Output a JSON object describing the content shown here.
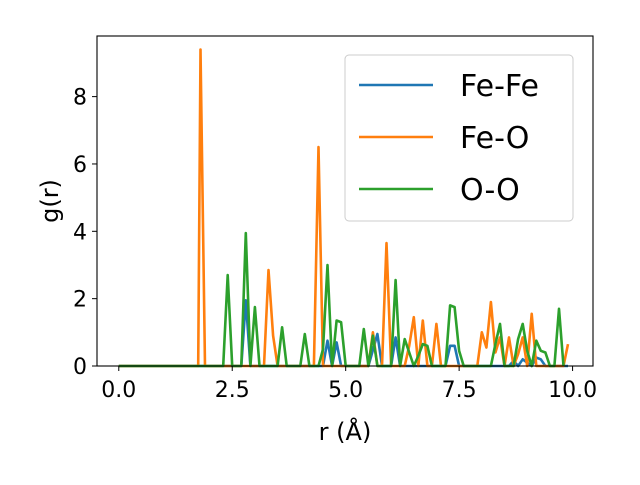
{
  "chart_data": {
    "type": "line",
    "title": "",
    "xlabel": "r (Å)",
    "ylabel": "g(r)",
    "xlim": [
      -0.48,
      10.45
    ],
    "ylim": [
      0,
      9.8
    ],
    "xticks": [
      0.0,
      2.5,
      5.0,
      7.5,
      10.0
    ],
    "xtick_labels": [
      "0.0",
      "2.5",
      "5.0",
      "7.5",
      "10.0"
    ],
    "yticks": [
      0,
      2,
      4,
      6,
      8
    ],
    "ytick_labels": [
      "0",
      "2",
      "4",
      "6",
      "8"
    ],
    "grid": false,
    "legend_position": "top-right",
    "series": [
      {
        "name": "Fe-Fe",
        "color": "#1f77b4",
        "x": [
          0.0,
          2.7,
          2.8,
          2.9,
          4.5,
          4.6,
          4.7,
          4.8,
          4.9,
          5.0,
          5.5,
          5.7,
          5.8,
          6.0,
          6.1,
          6.2,
          6.4,
          7.2,
          7.3,
          7.4,
          7.5,
          8.6,
          8.7,
          8.8,
          8.9,
          9.1,
          9.2,
          9.3,
          9.4,
          9.9
        ],
        "y": [
          0.0,
          0.0,
          1.95,
          0.0,
          0.0,
          0.75,
          0.0,
          0.7,
          0.0,
          0.0,
          0.0,
          0.95,
          0.0,
          0.0,
          0.85,
          0.0,
          0.0,
          0.0,
          0.6,
          0.6,
          0.0,
          0.0,
          0.15,
          0.0,
          0.2,
          0.0,
          0.25,
          0.2,
          0.0,
          0.0
        ]
      },
      {
        "name": "Fe-O",
        "color": "#ff7f0e",
        "x": [
          0.0,
          1.75,
          1.8,
          1.9,
          3.2,
          3.3,
          3.4,
          3.5,
          4.3,
          4.4,
          4.5,
          5.5,
          5.6,
          5.7,
          5.8,
          5.9,
          6.0,
          6.3,
          6.4,
          6.5,
          6.6,
          6.7,
          6.8,
          6.9,
          7.0,
          7.1,
          7.2,
          7.9,
          8.0,
          8.1,
          8.2,
          8.3,
          8.4,
          8.5,
          8.6,
          8.7,
          8.8,
          8.9,
          9.0,
          9.1,
          9.2,
          9.7,
          9.8,
          9.9
        ],
        "y": [
          0.0,
          0.0,
          9.4,
          0.0,
          0.0,
          2.85,
          0.9,
          0.0,
          0.0,
          6.5,
          0.0,
          0.0,
          1.0,
          0.0,
          0.0,
          3.65,
          0.0,
          0.0,
          0.6,
          1.45,
          0.0,
          1.35,
          0.0,
          0.0,
          1.25,
          0.0,
          0.0,
          0.0,
          1.0,
          0.55,
          1.9,
          0.4,
          0.85,
          0.0,
          0.85,
          0.0,
          0.35,
          0.85,
          0.0,
          1.55,
          0.0,
          0.0,
          0.0,
          0.65
        ]
      },
      {
        "name": "O-O",
        "color": "#2ca02c",
        "x": [
          0.0,
          2.3,
          2.4,
          2.5,
          2.7,
          2.8,
          2.9,
          3.0,
          3.1,
          3.5,
          3.6,
          3.7,
          3.8,
          4.0,
          4.1,
          4.2,
          4.4,
          4.5,
          4.6,
          4.7,
          4.8,
          4.9,
          5.0,
          5.3,
          5.4,
          5.5,
          5.6,
          5.7,
          5.8,
          6.0,
          6.1,
          6.2,
          6.3,
          6.5,
          6.6,
          6.7,
          6.8,
          6.9,
          7.2,
          7.3,
          7.4,
          7.5,
          7.6,
          7.7,
          7.8,
          8.0,
          8.1,
          8.2,
          8.3,
          8.4,
          8.5,
          8.7,
          8.8,
          8.9,
          9.0,
          9.1,
          9.2,
          9.3,
          9.4,
          9.5,
          9.6,
          9.7,
          9.8
        ],
        "y": [
          0.0,
          0.0,
          2.7,
          0.0,
          0.0,
          3.95,
          0.0,
          1.75,
          0.0,
          0.0,
          1.15,
          0.0,
          0.0,
          0.0,
          0.95,
          0.0,
          0.0,
          0.5,
          3.0,
          0.0,
          1.35,
          1.3,
          0.0,
          0.0,
          1.1,
          0.0,
          0.9,
          0.0,
          0.0,
          0.0,
          2.55,
          0.0,
          0.8,
          0.0,
          0.3,
          0.65,
          0.6,
          0.0,
          0.0,
          1.8,
          1.75,
          0.45,
          0.0,
          0.0,
          0.0,
          0.0,
          0.0,
          0.0,
          0.65,
          1.25,
          0.0,
          0.0,
          0.8,
          1.25,
          0.45,
          0.0,
          0.75,
          0.45,
          0.4,
          0.0,
          0.0,
          1.7,
          0.0
        ]
      }
    ]
  }
}
